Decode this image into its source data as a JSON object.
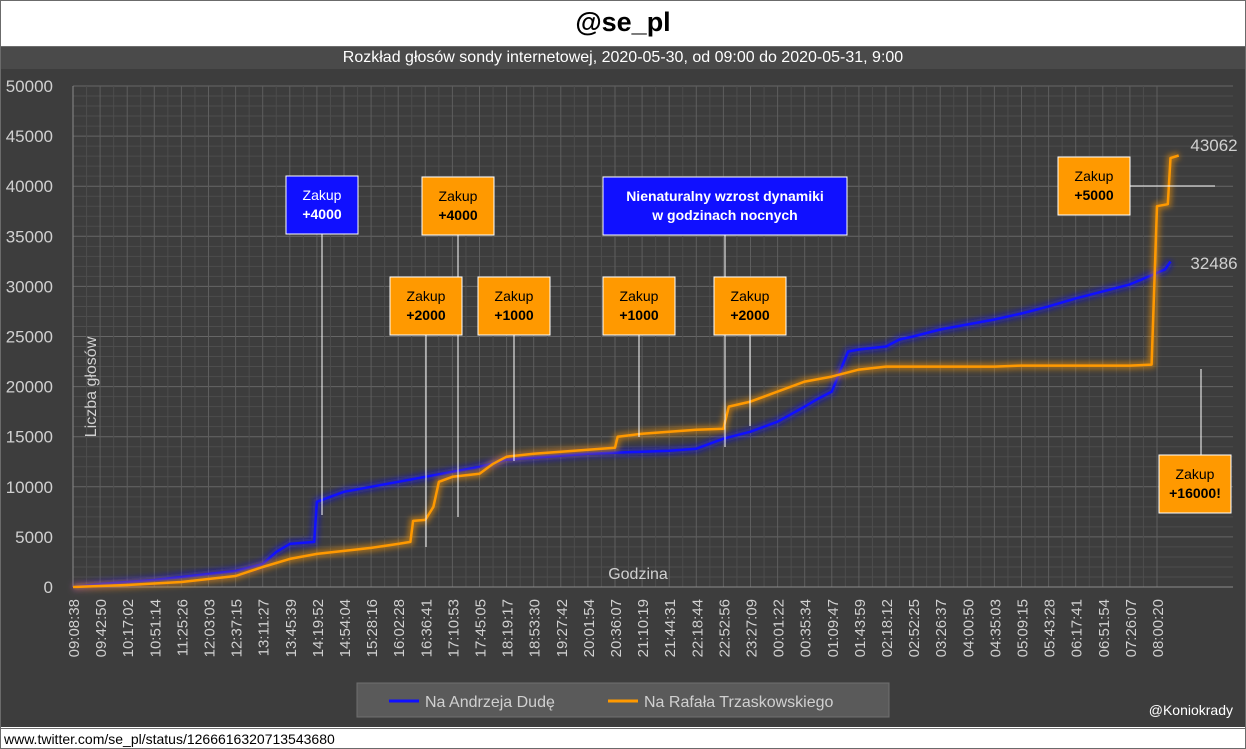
{
  "header": {
    "title": "@se_pl",
    "subtitle": "Rozkład głosów sondy internetowej, 2020-05-30, od 09:00 do 2020-05-31, 9:00"
  },
  "footer": {
    "url": "www.twitter.com/se_pl/status/1266616320713543680"
  },
  "credit": "@Koniokrady",
  "colors": {
    "background": "#3d3d3d",
    "grid": "#5c5c5c",
    "duda": "#1010ff",
    "trzaskowski": "#ff9900",
    "text": "#d0d0d0"
  },
  "chart_data": {
    "type": "line",
    "xlabel": "Godzina",
    "ylabel": "Liczba głosów",
    "ylim": [
      0,
      50000
    ],
    "yticks": [
      0,
      5000,
      10000,
      15000,
      20000,
      25000,
      30000,
      35000,
      40000,
      45000,
      50000
    ],
    "xticks": [
      "09:08:38",
      "09:42:50",
      "10:17:02",
      "10:51:14",
      "11:25:26",
      "12:03:03",
      "12:37:15",
      "13:11:27",
      "13:45:39",
      "14:19:52",
      "14:54:04",
      "15:28:16",
      "16:02:28",
      "16:36:41",
      "17:10:53",
      "17:45:05",
      "18:19:17",
      "18:53:30",
      "19:27:42",
      "20:01:54",
      "20:36:07",
      "21:10:19",
      "21:44:31",
      "22:18:44",
      "22:52:56",
      "23:27:09",
      "00:01:22",
      "00:35:34",
      "01:09:47",
      "01:43:59",
      "02:18:12",
      "02:52:25",
      "03:26:37",
      "04:00:50",
      "04:35:03",
      "05:09:15",
      "05:43:28",
      "06:17:41",
      "06:51:54",
      "07:26:07",
      "08:00:20"
    ],
    "legend_position": "bottom",
    "series": [
      {
        "name": "Na Andrzeja Dudę",
        "color": "#1010ff",
        "end_label": "32486",
        "points": [
          [
            0,
            0
          ],
          [
            1,
            300
          ],
          [
            2,
            500
          ],
          [
            3,
            700
          ],
          [
            4,
            1000
          ],
          [
            5,
            1300
          ],
          [
            6,
            1600
          ],
          [
            7,
            2300
          ],
          [
            7.5,
            3500
          ],
          [
            8,
            4300
          ],
          [
            8.9,
            4500
          ],
          [
            9.0,
            8500
          ],
          [
            9.5,
            9000
          ],
          [
            10,
            9500
          ],
          [
            11,
            10000
          ],
          [
            12,
            10500
          ],
          [
            13,
            11000
          ],
          [
            14,
            11500
          ],
          [
            15,
            12000
          ],
          [
            16,
            12700
          ],
          [
            17,
            12900
          ],
          [
            18,
            13100
          ],
          [
            19,
            13300
          ],
          [
            20,
            13400
          ],
          [
            21,
            13500
          ],
          [
            22,
            13600
          ],
          [
            23,
            13800
          ],
          [
            23.5,
            14300
          ],
          [
            24,
            14800
          ],
          [
            25,
            15500
          ],
          [
            26,
            16500
          ],
          [
            27,
            18000
          ],
          [
            27.5,
            18800
          ],
          [
            28,
            19500
          ],
          [
            28.3,
            21500
          ],
          [
            28.6,
            23500
          ],
          [
            29,
            23700
          ],
          [
            30,
            24000
          ],
          [
            30.5,
            24700
          ],
          [
            31,
            25000
          ],
          [
            32,
            25700
          ],
          [
            33,
            26200
          ],
          [
            34,
            26700
          ],
          [
            35,
            27300
          ],
          [
            36,
            28000
          ],
          [
            37,
            28800
          ],
          [
            38,
            29500
          ],
          [
            39,
            30200
          ],
          [
            39.7,
            31000
          ],
          [
            40.3,
            31700
          ],
          [
            40.5,
            32486
          ]
        ]
      },
      {
        "name": "Na Rafała Trzaskowskiego",
        "color": "#ff9900",
        "end_label": "43062",
        "points": [
          [
            0,
            0
          ],
          [
            1,
            100
          ],
          [
            2,
            200
          ],
          [
            3,
            350
          ],
          [
            4,
            500
          ],
          [
            5,
            800
          ],
          [
            6,
            1100
          ],
          [
            7,
            2000
          ],
          [
            8,
            2800
          ],
          [
            9,
            3300
          ],
          [
            10,
            3600
          ],
          [
            11,
            3900
          ],
          [
            12,
            4300
          ],
          [
            12.45,
            4500
          ],
          [
            12.55,
            6600
          ],
          [
            13,
            6700
          ],
          [
            13.3,
            8000
          ],
          [
            13.5,
            10500
          ],
          [
            14,
            11000
          ],
          [
            15,
            11300
          ],
          [
            15.5,
            12300
          ],
          [
            16,
            13000
          ],
          [
            17,
            13300
          ],
          [
            18,
            13500
          ],
          [
            19,
            13700
          ],
          [
            20,
            13900
          ],
          [
            20.1,
            15000
          ],
          [
            21,
            15300
          ],
          [
            22,
            15500
          ],
          [
            23,
            15700
          ],
          [
            24,
            15800
          ],
          [
            24.2,
            18000
          ],
          [
            25,
            18500
          ],
          [
            26,
            19500
          ],
          [
            27,
            20500
          ],
          [
            28,
            21000
          ],
          [
            29,
            21700
          ],
          [
            30,
            22000
          ],
          [
            31,
            22000
          ],
          [
            32,
            22000
          ],
          [
            33,
            22000
          ],
          [
            34,
            22000
          ],
          [
            35,
            22100
          ],
          [
            36,
            22100
          ],
          [
            37,
            22100
          ],
          [
            38,
            22100
          ],
          [
            39,
            22100
          ],
          [
            39.8,
            22200
          ],
          [
            40.0,
            38000
          ],
          [
            40.4,
            38200
          ],
          [
            40.5,
            42800
          ],
          [
            40.8,
            43062
          ]
        ]
      }
    ],
    "annotations": [
      {
        "line1": "Zakup",
        "line2": "+4000",
        "fill": "#1010ff",
        "text_color": "#ffffff"
      },
      {
        "line1": "Zakup",
        "line2": "+4000",
        "fill": "#ff9900",
        "text_color": "#000000"
      },
      {
        "line1": "Zakup",
        "line2": "+2000",
        "fill": "#ff9900",
        "text_color": "#000000"
      },
      {
        "line1": "Zakup",
        "line2": "+1000",
        "fill": "#ff9900",
        "text_color": "#000000"
      },
      {
        "line1": "Zakup",
        "line2": "+1000",
        "fill": "#ff9900",
        "text_color": "#000000"
      },
      {
        "line1": "Zakup",
        "line2": "+2000",
        "fill": "#ff9900",
        "text_color": "#000000"
      },
      {
        "line1": "Nienaturalny wzrost dynamiki",
        "line2": "w godzinach nocnych",
        "fill": "#1010ff",
        "text_color": "#ffffff"
      },
      {
        "line1": "Zakup",
        "line2": "+5000",
        "fill": "#ff9900",
        "text_color": "#000000"
      },
      {
        "line1": "Zakup",
        "line2": "+16000!",
        "fill": "#ff9900",
        "text_color": "#000000"
      }
    ]
  }
}
